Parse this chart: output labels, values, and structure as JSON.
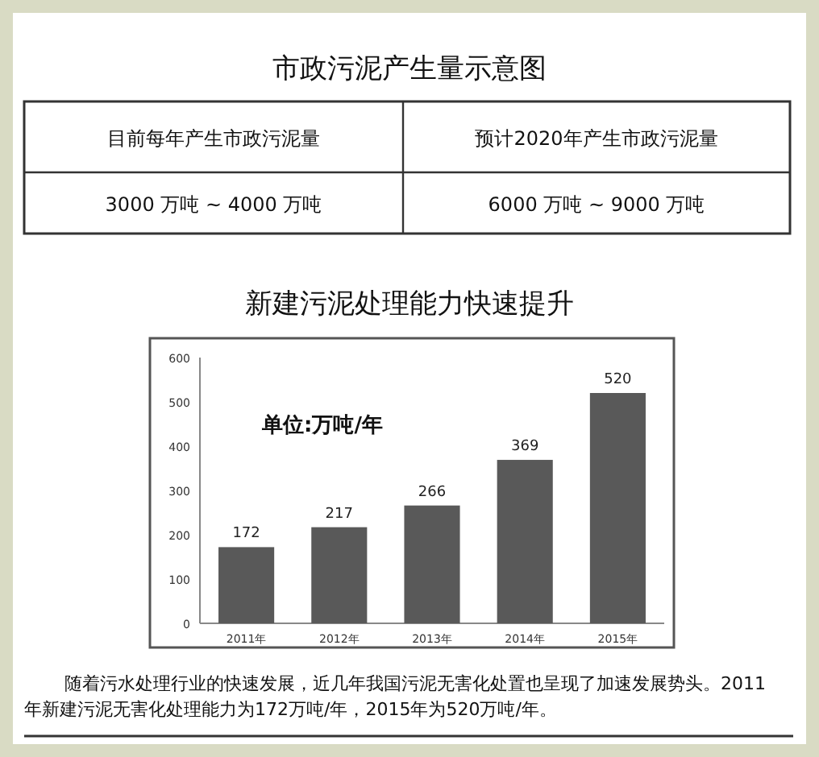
{
  "chart_data": [
    {
      "type": "other",
      "title": "市政污泥产生量示意图",
      "annotations": [
        "目前每年产生市政污泥量",
        "预计2020年产生市政污泥量",
        "3000 万吨 ~ 4000 万吨",
        "6000 万吨 ~ 9000 万吨"
      ]
    },
    {
      "type": "bar",
      "title": "新建污泥处理能力快速提升",
      "categories": [
        "2011年",
        "2012年",
        "2013年",
        "2014年",
        "2015年"
      ],
      "values": [
        172,
        217,
        266,
        369,
        520
      ],
      "color": "#595959",
      "ylim": [
        0,
        600
      ],
      "yticks": [
        0,
        100,
        200,
        300,
        400,
        500,
        600
      ],
      "data_labels": true,
      "annotations": [
        "单位:万吨/年",
        "随着污水处理行业的快速发展，近几年我国污泥无害化处置也呈现了加速发展势头。2011年新建污泥无害化处理能力为172万吨/年，2015年为520万吨/年。"
      ]
    }
  ]
}
